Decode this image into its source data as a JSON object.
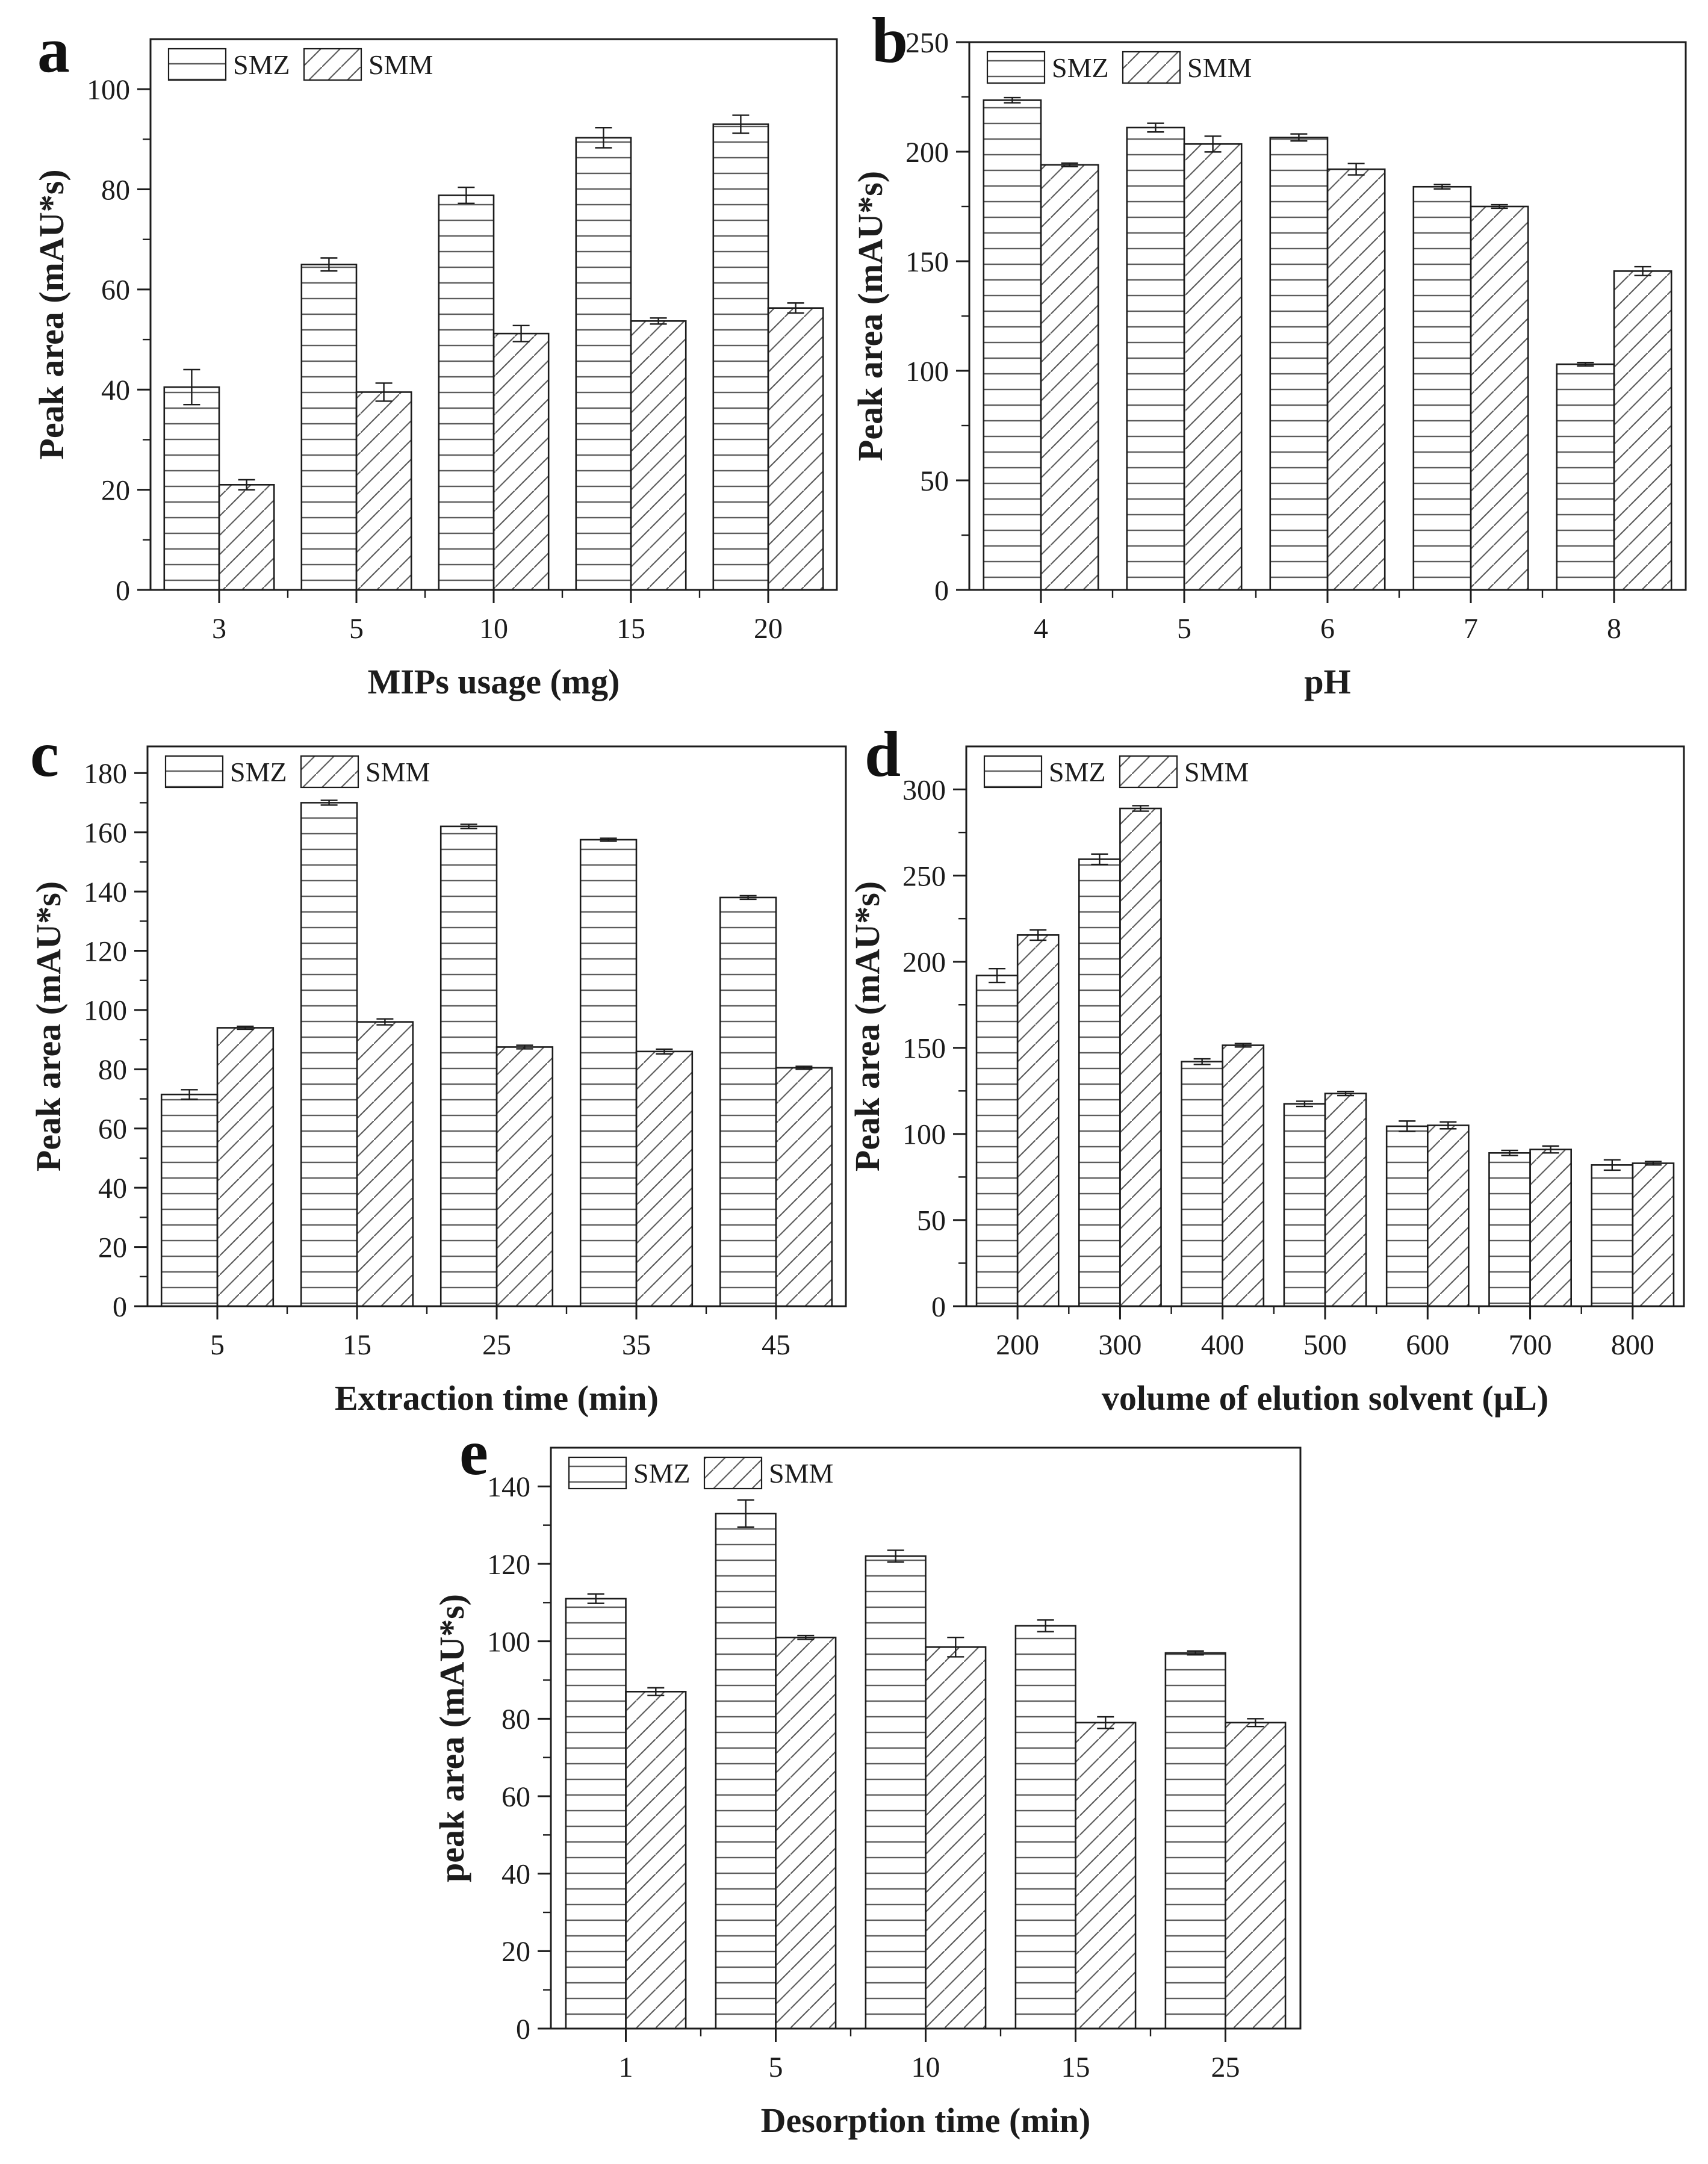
{
  "figure_title": "",
  "colors": {
    "ink": "#1c1c1c",
    "hatch_line": "#5c5c5c",
    "background": "#ffffff"
  },
  "legend": {
    "series1": "SMZ",
    "series2": "SMM"
  },
  "chart_data": [
    {
      "id": "a",
      "panel_letter": "a",
      "type": "bar",
      "title": "",
      "xlabel": "MIPs usage (mg)",
      "ylabel": "Peak area (mAU*s)",
      "categories": [
        "3",
        "5",
        "10",
        "15",
        "20"
      ],
      "ylim": [
        0,
        110
      ],
      "ytick_step": 20,
      "grid": false,
      "legend_position": "top-left",
      "series": [
        {
          "name": "SMZ",
          "hatch": "horizontal",
          "values": [
            40.5,
            65,
            78.8,
            90.3,
            93
          ],
          "errors": [
            3.5,
            1.3,
            1.6,
            2.0,
            1.8
          ]
        },
        {
          "name": "SMM",
          "hatch": "diagonal",
          "values": [
            21,
            39.5,
            51.2,
            53.7,
            56.3
          ],
          "errors": [
            1.0,
            1.8,
            1.6,
            0.6,
            1.0
          ]
        }
      ]
    },
    {
      "id": "b",
      "panel_letter": "b",
      "type": "bar",
      "title": "",
      "xlabel": "pH",
      "ylabel": "Peak area (mAU*s)",
      "categories": [
        "4",
        "5",
        "6",
        "7",
        "8"
      ],
      "ylim": [
        0,
        250
      ],
      "ytick_step": 50,
      "grid": false,
      "legend_position": "top-left",
      "series": [
        {
          "name": "SMZ",
          "hatch": "horizontal",
          "values": [
            223.5,
            211,
            206.5,
            184,
            103
          ],
          "errors": [
            1.2,
            2.0,
            1.6,
            1.0,
            0.8
          ]
        },
        {
          "name": "SMM",
          "hatch": "diagonal",
          "values": [
            194,
            203.5,
            192,
            175,
            145.5
          ],
          "errors": [
            0.8,
            3.6,
            2.6,
            0.8,
            2.0
          ]
        }
      ]
    },
    {
      "id": "c",
      "panel_letter": "c",
      "type": "bar",
      "title": "",
      "xlabel": "Extraction time (min)",
      "ylabel": "Peak area (mAU*s)",
      "categories": [
        "5",
        "15",
        "25",
        "35",
        "45"
      ],
      "ylim": [
        0,
        189
      ],
      "ytick_step": 20,
      "grid": false,
      "legend_position": "top-left",
      "series": [
        {
          "name": "SMZ",
          "hatch": "horizontal",
          "values": [
            71.5,
            170,
            162,
            157.5,
            138
          ],
          "errors": [
            1.6,
            0.8,
            0.7,
            0.5,
            0.6
          ]
        },
        {
          "name": "SMM",
          "hatch": "diagonal",
          "values": [
            94,
            96,
            87.5,
            86,
            80.5
          ],
          "errors": [
            0.5,
            1.0,
            0.6,
            0.8,
            0.5
          ]
        }
      ]
    },
    {
      "id": "d",
      "panel_letter": "d",
      "type": "bar",
      "title": "",
      "xlabel": "volume of elution solvent (µL)",
      "ylabel": "Peak area (mAU*s)",
      "categories": [
        "200",
        "300",
        "400",
        "500",
        "600",
        "700",
        "800"
      ],
      "ylim": [
        0,
        325
      ],
      "ytick_step": 50,
      "grid": false,
      "legend_position": "top-left",
      "series": [
        {
          "name": "SMZ",
          "hatch": "horizontal",
          "values": [
            192,
            259.5,
            142,
            117.5,
            104.5,
            89,
            82
          ],
          "errors": [
            4.0,
            3.0,
            1.6,
            1.5,
            3.0,
            1.5,
            3.0
          ]
        },
        {
          "name": "SMM",
          "hatch": "diagonal",
          "values": [
            215.5,
            289,
            151.5,
            123.5,
            105,
            91,
            83
          ],
          "errors": [
            3.0,
            1.6,
            1.0,
            1.2,
            2.0,
            2.0,
            1.0
          ]
        }
      ]
    },
    {
      "id": "e",
      "panel_letter": "e",
      "type": "bar",
      "title": "",
      "xlabel": "Desorption time (min)",
      "ylabel": "peak area (mAU*s)",
      "categories": [
        "1",
        "5",
        "10",
        "15",
        "25"
      ],
      "ylim": [
        0,
        150
      ],
      "ytick_step": 20,
      "grid": false,
      "legend_position": "top-left",
      "series": [
        {
          "name": "SMZ",
          "hatch": "horizontal",
          "values": [
            111,
            133,
            122,
            104,
            97
          ],
          "errors": [
            1.2,
            3.5,
            1.5,
            1.5,
            0.5
          ]
        },
        {
          "name": "SMM",
          "hatch": "diagonal",
          "values": [
            87,
            101,
            98.5,
            79,
            79
          ],
          "errors": [
            1.0,
            0.5,
            2.5,
            1.5,
            1.0
          ]
        }
      ]
    }
  ]
}
